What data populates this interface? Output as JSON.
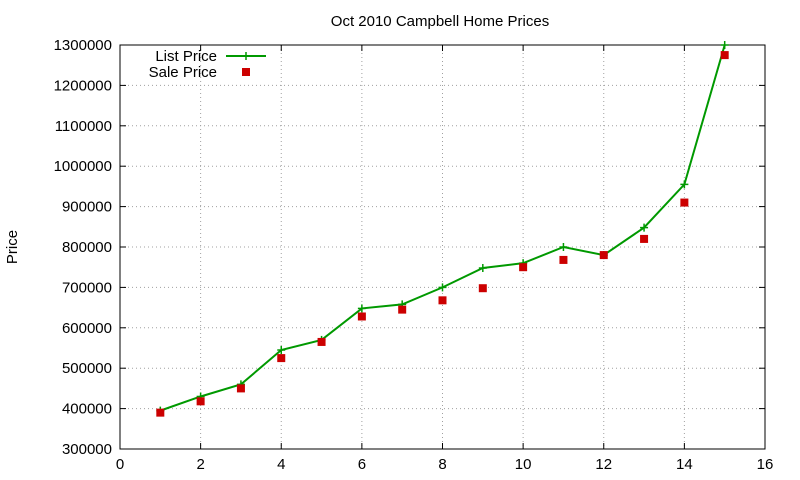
{
  "chart_data": {
    "type": "line",
    "title": "Oct 2010 Campbell Home Prices",
    "xlabel": "",
    "ylabel": "Price",
    "xlim": [
      0,
      16
    ],
    "ylim": [
      300000,
      1300000
    ],
    "x_ticks": [
      0,
      2,
      4,
      6,
      8,
      10,
      12,
      14,
      16
    ],
    "y_ticks": [
      300000,
      400000,
      500000,
      600000,
      700000,
      800000,
      900000,
      1000000,
      1100000,
      1200000,
      1300000
    ],
    "grid": true,
    "legend_position": "top-left",
    "series": [
      {
        "name": "List Price",
        "style": "line+cross",
        "color": "#009900",
        "x": [
          1,
          2,
          3,
          4,
          5,
          6,
          7,
          8,
          9,
          10,
          11,
          12,
          13,
          14,
          15
        ],
        "y": [
          395000,
          430000,
          460000,
          545000,
          570000,
          648000,
          658000,
          700000,
          748000,
          760000,
          800000,
          780000,
          848000,
          955000,
          1300000
        ]
      },
      {
        "name": "Sale Price",
        "style": "square-markers",
        "color": "#cc0000",
        "x": [
          1,
          2,
          3,
          4,
          5,
          6,
          7,
          8,
          9,
          10,
          11,
          12,
          13,
          14,
          15
        ],
        "y": [
          390000,
          418000,
          450000,
          525000,
          565000,
          628000,
          645000,
          668000,
          698000,
          750000,
          768000,
          780000,
          820000,
          910000,
          1275000
        ]
      }
    ]
  }
}
